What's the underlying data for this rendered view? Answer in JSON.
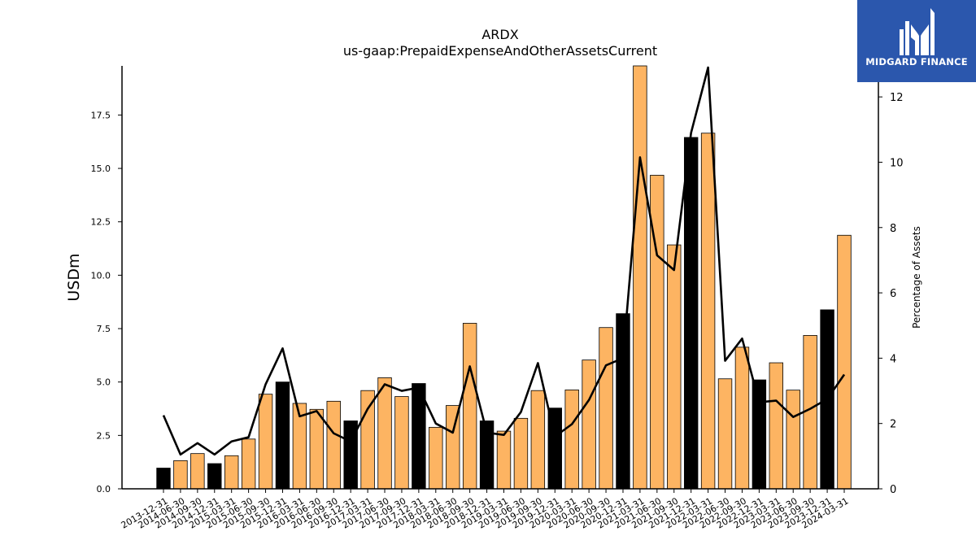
{
  "logo": {
    "text": "MIDGARD FINANCE",
    "color": "#2b57ad"
  },
  "chart_data": {
    "type": "bar",
    "title": "ARDX",
    "subtitle": "us-gaap:PrepaidExpenseAndOtherAssetsCurrent",
    "ylabel": "USDm",
    "y2label": "Percentage of Assets",
    "ylim": [
      0,
      19.8
    ],
    "y2lim": [
      0,
      12.95
    ],
    "yticks": [
      "0.0",
      "2.5",
      "5.0",
      "7.5",
      "10.0",
      "12.5",
      "15.0",
      "17.5"
    ],
    "y2ticks": [
      "0",
      "2",
      "4",
      "6",
      "8",
      "10",
      "12"
    ],
    "categories": [
      "2013-12-31",
      "2014-06-30",
      "2014-09-30",
      "2014-12-31",
      "2015-03-31",
      "2015-06-30",
      "2015-09-30",
      "2015-12-31",
      "2016-03-31",
      "2016-06-30",
      "2016-09-30",
      "2016-12-31",
      "2017-03-31",
      "2017-06-30",
      "2017-09-30",
      "2017-12-31",
      "2018-03-31",
      "2018-06-30",
      "2018-09-30",
      "2018-12-31",
      "2019-03-31",
      "2019-06-30",
      "2019-09-30",
      "2019-12-31",
      "2020-03-31",
      "2020-06-30",
      "2020-09-30",
      "2020-12-31",
      "2021-03-31",
      "2021-06-30",
      "2021-09-30",
      "2021-12-31",
      "2022-03-31",
      "2022-06-30",
      "2022-09-30",
      "2022-12-31",
      "2023-03-31",
      "2023-06-30",
      "2023-09-30",
      "2023-12-31",
      "2024-03-31"
    ],
    "series": [
      {
        "type": "bar",
        "axis": "left",
        "values": [
          0.97,
          1.32,
          1.65,
          1.18,
          1.55,
          2.33,
          4.43,
          5.0,
          4.0,
          3.72,
          4.1,
          3.18,
          4.6,
          5.2,
          4.32,
          4.93,
          2.88,
          3.9,
          7.75,
          3.18,
          2.7,
          3.3,
          4.6,
          3.78,
          4.63,
          6.03,
          7.55,
          8.2,
          19.8,
          14.68,
          11.42,
          16.45,
          16.65,
          5.15,
          6.63,
          5.1,
          5.9,
          4.62,
          7.18,
          8.38,
          11.87
        ]
      },
      {
        "type": "line",
        "axis": "right",
        "values": [
          2.25,
          1.05,
          1.4,
          1.05,
          1.45,
          1.58,
          3.2,
          4.3,
          2.22,
          2.38,
          1.7,
          1.45,
          2.45,
          3.2,
          3.0,
          3.1,
          2.0,
          1.72,
          3.75,
          1.72,
          1.65,
          2.35,
          3.85,
          1.6,
          1.98,
          2.72,
          3.78,
          4.0,
          10.15,
          7.15,
          6.7,
          10.9,
          12.9,
          3.92,
          4.6,
          2.65,
          2.7,
          2.2,
          2.45,
          2.75,
          3.5
        ]
      }
    ],
    "year_end_color": "#000000",
    "bar_color": "#fdb462",
    "line_color": "#000000",
    "grid": false,
    "legend": "none"
  }
}
